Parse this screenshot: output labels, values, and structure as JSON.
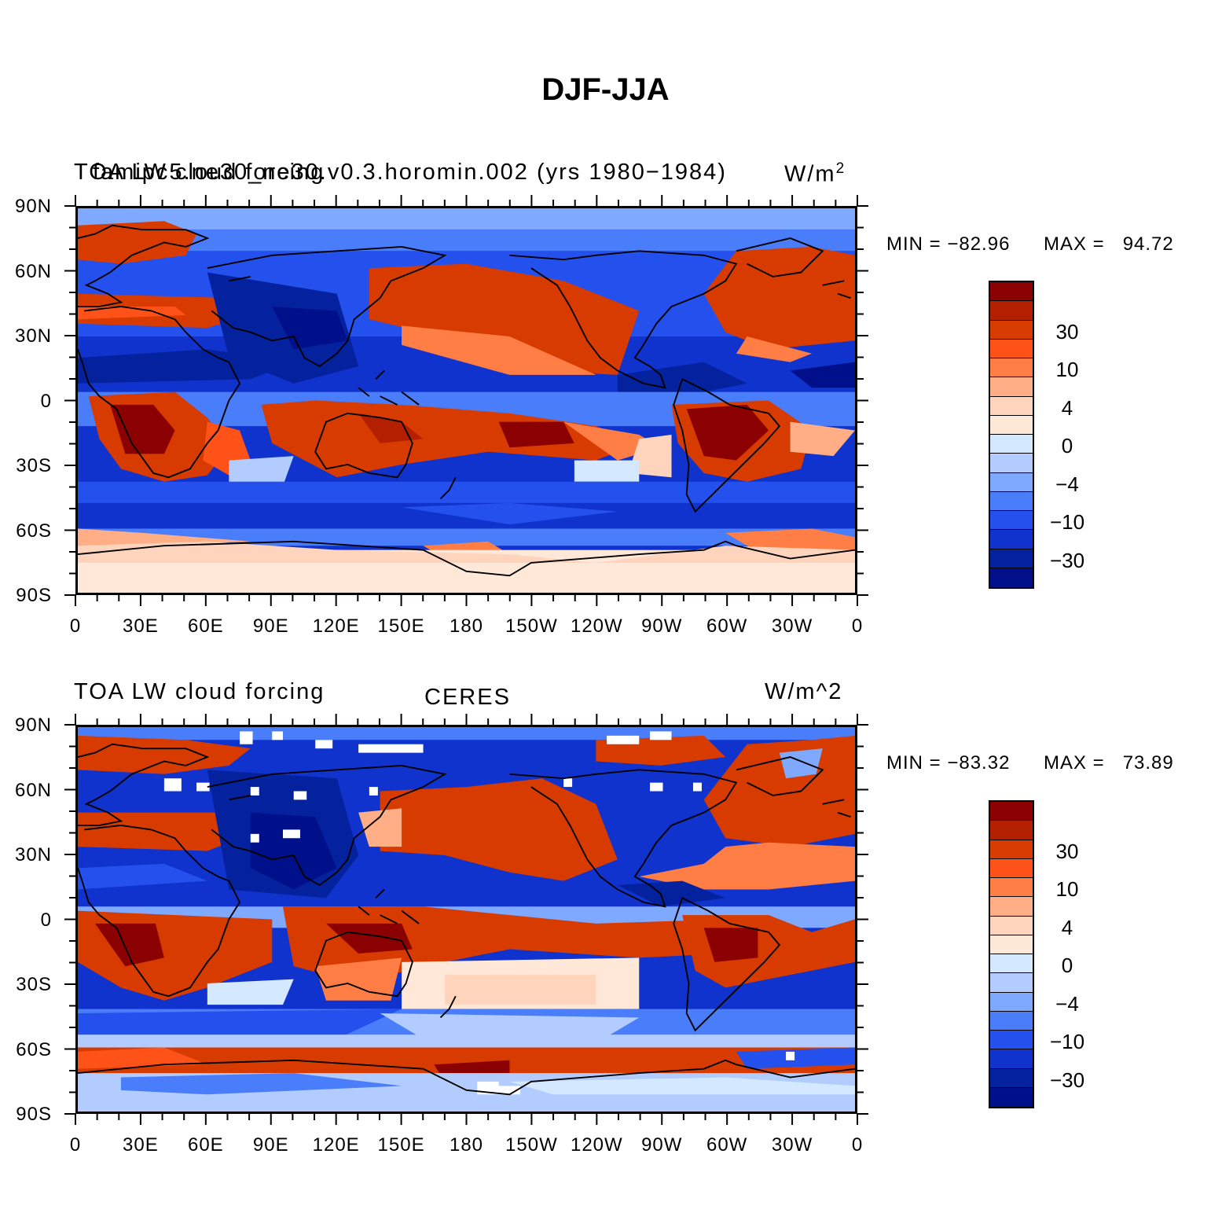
{
  "title": "DJF-JJA",
  "colors": {
    "levels": [
      "#8b0000",
      "#b22000",
      "#d83b00",
      "#ff5218",
      "#ff7e46",
      "#ffae85",
      "#ffd4bd",
      "#ffe8d8",
      "#d4e8ff",
      "#b2ccff",
      "#7fa8ff",
      "#4a7dfa",
      "#2451ee",
      "#0f33cc",
      "#05229e",
      "#00108a"
    ],
    "coast": "#000000"
  },
  "colorbar_labels": [
    "30",
    "10",
    "4",
    "0",
    "−4",
    "−10",
    "−30"
  ],
  "panels": [
    {
      "title_left": "TOA LW cloud forcing",
      "title_overlay": "famipc5.ne30_ne30.v0.3.horomin.002 (yrs 1980−1984)",
      "title_right": "W/m",
      "title_right_sup": "2",
      "title_center": "",
      "min_label": "MIN = −82.96",
      "max_label": "MAX =   94.72"
    },
    {
      "title_left": "TOA LW cloud forcing",
      "title_overlay": "",
      "title_right": "W/m^2",
      "title_right_sup": "",
      "title_center": "CERES",
      "min_label": "MIN = −83.32",
      "max_label": "MAX =   73.89"
    }
  ],
  "lat_labels": [
    "90N",
    "60N",
    "30N",
    "0",
    "30S",
    "60S",
    "90S"
  ],
  "lon_labels": [
    "0",
    "30E",
    "60E",
    "90E",
    "120E",
    "150E",
    "180",
    "150W",
    "120W",
    "90W",
    "60W",
    "30W",
    "0"
  ]
}
